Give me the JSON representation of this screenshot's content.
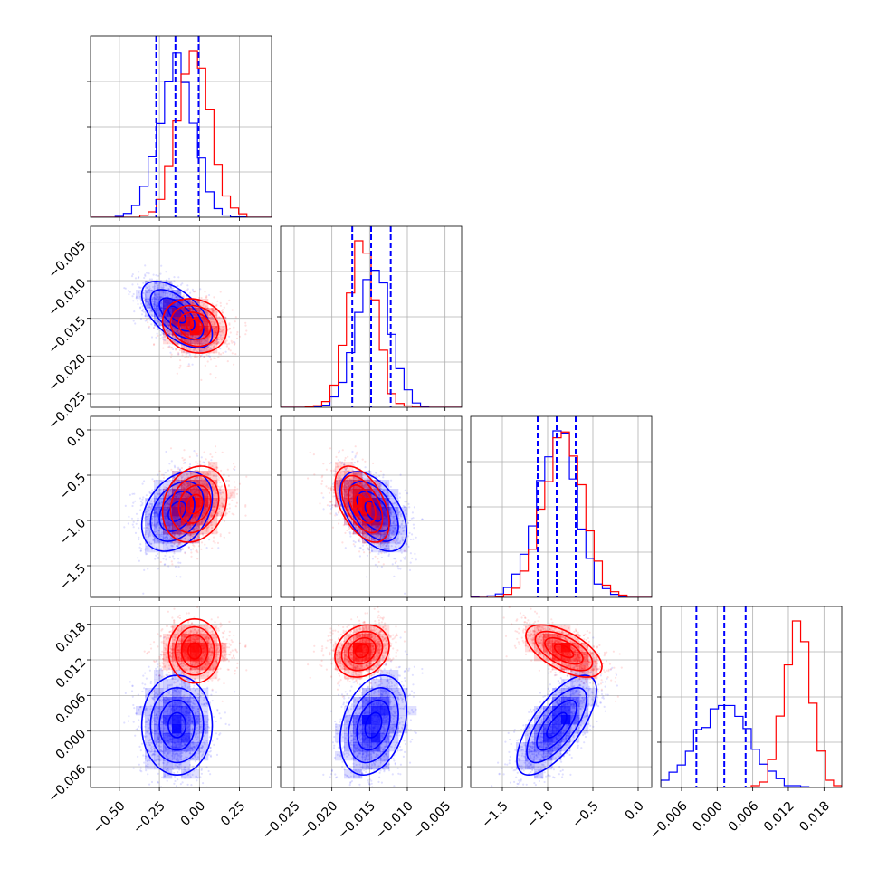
{
  "colors": {
    "series_a": "#0000ff",
    "series_b": "#ff0000",
    "quantile_line": "#0000ff",
    "grid": "#b0b0b0",
    "frame": "#000000"
  },
  "chart_data": {
    "type": "corner",
    "grid": true,
    "n_params": 4,
    "series": [
      {
        "color": "#0000ff",
        "means": [
          -0.14,
          -0.0145,
          -0.9,
          0.001
        ],
        "stds": [
          0.11,
          0.0022,
          0.22,
          0.0042
        ],
        "correlations": [
          [
            0,
            1,
            -0.6
          ],
          [
            0,
            2,
            0.35
          ],
          [
            1,
            2,
            -0.5
          ],
          [
            2,
            3,
            0.7
          ],
          [
            0,
            3,
            0.0
          ],
          [
            1,
            3,
            0.3
          ]
        ]
      },
      {
        "color": "#ff0000",
        "means": [
          -0.03,
          -0.016,
          -0.82,
          0.0135
        ],
        "stds": [
          0.1,
          0.0018,
          0.21,
          0.0022
        ],
        "correlations": [
          [
            0,
            1,
            -0.15
          ],
          [
            0,
            2,
            0.2
          ],
          [
            1,
            2,
            -0.5
          ],
          [
            2,
            3,
            -0.6
          ],
          [
            0,
            3,
            0.0
          ],
          [
            1,
            3,
            0.2
          ]
        ]
      }
    ],
    "quantile_lines": [
      [
        -0.27,
        -0.15,
        -0.005
      ],
      [
        -0.0173,
        -0.0148,
        -0.0122
      ],
      [
        -1.11,
        -0.9,
        -0.69
      ],
      [
        -0.0035,
        0.0012,
        0.0048
      ]
    ],
    "params": [
      {
        "range": [
          -0.68,
          0.45
        ],
        "ticks": [
          -0.5,
          -0.25,
          0.0,
          0.25
        ],
        "tick_labels": [
          "−0.50",
          "−0.25",
          "0.00",
          "0.25"
        ]
      },
      {
        "range": [
          -0.0268,
          -0.0028
        ],
        "ticks": [
          -0.025,
          -0.02,
          -0.015,
          -0.01,
          -0.005
        ],
        "tick_labels": [
          "−0.025",
          "−0.020",
          "−0.015",
          "−0.010",
          "−0.005"
        ]
      },
      {
        "range": [
          -1.85,
          0.15
        ],
        "ticks": [
          -1.5,
          -1.0,
          -0.5,
          0.0
        ],
        "tick_labels": [
          "−1.5",
          "−1.0",
          "−0.5",
          "0.0"
        ]
      },
      {
        "range": [
          -0.0095,
          0.021
        ],
        "ticks": [
          -0.006,
          0.0,
          0.006,
          0.012,
          0.018
        ],
        "tick_labels": [
          "−0.006",
          "0.000",
          "0.006",
          "0.012",
          "0.018"
        ]
      }
    ]
  }
}
